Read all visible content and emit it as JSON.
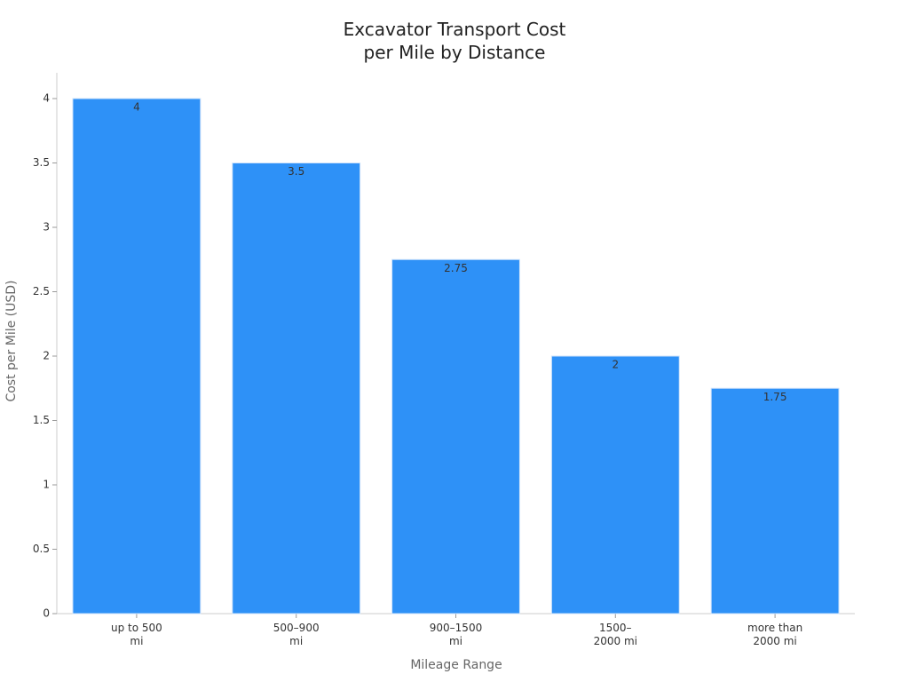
{
  "chart_data": {
    "type": "bar",
    "title": "Excavator Transport Cost per Mile by Distance",
    "x_label": "Mileage Range",
    "y_label": "Cost per Mile (USD)",
    "categories": [
      "up to 500 mi",
      "500–900 mi",
      "900–1500 mi",
      "1500–2000 mi",
      "more than 2000 mi"
    ],
    "values": [
      4,
      3.5,
      2.75,
      2,
      1.75
    ],
    "color": "#2e91f7",
    "ylim": [
      0,
      4.2
    ],
    "yticks": [
      0,
      0.5,
      1,
      1.5,
      2,
      2.5,
      3,
      3.5,
      4
    ],
    "grid": false
  }
}
